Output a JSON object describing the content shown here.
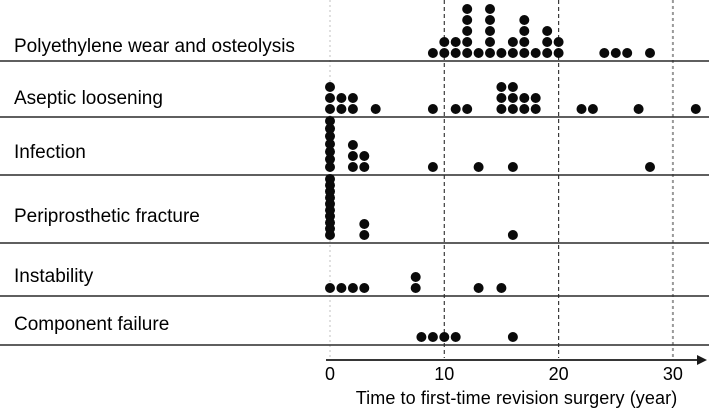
{
  "chart_data": {
    "type": "scatter",
    "variant": "stacked-dot-strip-plot",
    "title": "",
    "xlabel": "Time to first-time revision surgery (year)",
    "ylabel": "",
    "x_ticks": [
      "0",
      "10",
      "20",
      "30"
    ],
    "x_tick_values": [
      0,
      10,
      20,
      30
    ],
    "xlim": [
      0,
      33
    ],
    "grid": "vertical-dashed",
    "dot_color": "#0a0a0a",
    "axis_color": "#1a1a1a",
    "separator_color": "#2a2a2a",
    "gridlines": [
      {
        "year": 0,
        "color": "#c0c0c0",
        "dash": "2,3",
        "width": 1
      },
      {
        "year": 10,
        "color": "#3a3a3a",
        "dash": "4,3",
        "width": 1.2
      },
      {
        "year": 20,
        "color": "#3a3a3a",
        "dash": "4,3",
        "width": 1.2
      },
      {
        "year": 30,
        "color": "#9a9a9a",
        "dash": "3,3",
        "width": 2
      }
    ],
    "point_format": "[year, dot_count]",
    "categories": [
      {
        "label": "Polyethylene wear and osteolysis",
        "points": [
          [
            9,
            1
          ],
          [
            10,
            2
          ],
          [
            11,
            2
          ],
          [
            12,
            5
          ],
          [
            13,
            1
          ],
          [
            14,
            5
          ],
          [
            15,
            1
          ],
          [
            16,
            2
          ],
          [
            17,
            4
          ],
          [
            18,
            1
          ],
          [
            19,
            3
          ],
          [
            20,
            2
          ],
          [
            24,
            1
          ],
          [
            25,
            1
          ],
          [
            26,
            1
          ],
          [
            28,
            1
          ]
        ]
      },
      {
        "label": "Aseptic loosening",
        "points": [
          [
            0,
            3
          ],
          [
            1,
            2
          ],
          [
            2,
            2
          ],
          [
            4,
            1
          ],
          [
            9,
            1
          ],
          [
            11,
            1
          ],
          [
            12,
            1
          ],
          [
            15,
            3
          ],
          [
            16,
            3
          ],
          [
            17,
            2
          ],
          [
            18,
            2
          ],
          [
            22,
            1
          ],
          [
            23,
            1
          ],
          [
            27,
            1
          ],
          [
            32,
            1
          ]
        ]
      },
      {
        "label": "Infection",
        "points": [
          [
            0,
            7
          ],
          [
            2,
            3
          ],
          [
            3,
            2
          ],
          [
            9,
            1
          ],
          [
            13,
            1
          ],
          [
            16,
            1
          ],
          [
            28,
            1
          ]
        ]
      },
      {
        "label": "Periprosthetic fracture",
        "points": [
          [
            0,
            10
          ],
          [
            3,
            2
          ],
          [
            16,
            1
          ]
        ]
      },
      {
        "label": "Instability",
        "points": [
          [
            0,
            1
          ],
          [
            1,
            1
          ],
          [
            2,
            1
          ],
          [
            3,
            1
          ],
          [
            7.5,
            2
          ],
          [
            13,
            1
          ],
          [
            15,
            1
          ]
        ]
      },
      {
        "label": "Component failure",
        "points": [
          [
            8,
            1
          ],
          [
            9,
            1
          ],
          [
            10,
            1
          ],
          [
            11,
            1
          ],
          [
            16,
            1
          ]
        ]
      }
    ]
  }
}
